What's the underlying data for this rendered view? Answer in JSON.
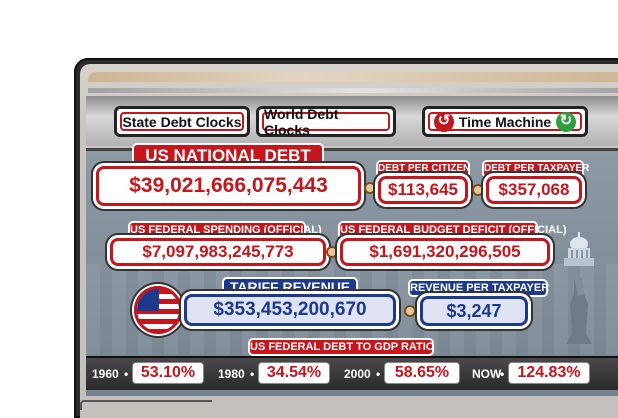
{
  "tabs": {
    "state": "State Debt Clocks",
    "world": "World Debt Clocks",
    "time_machine": "Time Machine"
  },
  "national_debt": {
    "label": "US NATIONAL DEBT",
    "value": "$39,021,666,075,443"
  },
  "debt_per_citizen": {
    "label": "DEBT PER CITIZEN",
    "value": "$113,645"
  },
  "debt_per_taxpayer": {
    "label": "DEBT PER TAXPAYER",
    "value": "$357,068"
  },
  "federal_spending": {
    "label": "US FEDERAL SPENDING (OFFICIAL)",
    "value": "$7,097,983,245,773"
  },
  "budget_deficit": {
    "label": "US FEDERAL BUDGET DEFICIT (OFFICIAL)",
    "value": "$1,691,320,296,505"
  },
  "tariff_revenue": {
    "label": "TARIFF REVENUE",
    "value": "$353,453,200,670"
  },
  "revenue_per_taxpayer": {
    "label": "REVENUE PER TAXPAYER",
    "value": "$3,247"
  },
  "debt_to_gdp": {
    "label": "US FEDERAL DEBT TO GDP RATIO",
    "items": [
      {
        "year": "1960",
        "value": "53.10%"
      },
      {
        "year": "1980",
        "value": "34.54%"
      },
      {
        "year": "2000",
        "value": "58.65%"
      },
      {
        "year": "NOW",
        "value": "124.83%"
      }
    ]
  },
  "colors": {
    "accent_red": "#c4161c",
    "accent_blue": "#1c3a8c",
    "panel_gray": "#7f8c97"
  },
  "icons": [
    "rewind-clock-icon",
    "forward-clock-icon",
    "us-flag-icon",
    "capitol-icon",
    "statue-icon",
    "connector-icon"
  ]
}
